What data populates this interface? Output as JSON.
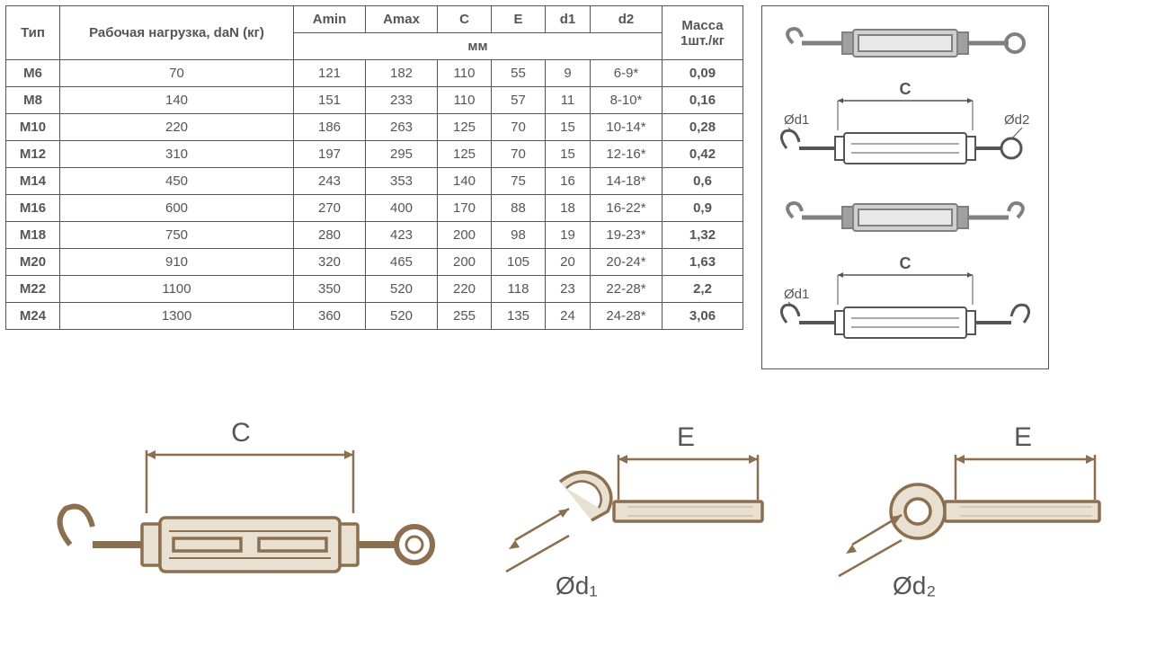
{
  "table": {
    "headers": {
      "type": "Тип",
      "load": "Рабочая нагрузка, daN (кг)",
      "amin": "Amin",
      "amax": "Amax",
      "c": "C",
      "e": "E",
      "d1": "d1",
      "d2": "d2",
      "mm": "мм",
      "mass": "Масса 1шт./кг"
    },
    "rows": [
      {
        "type": "M6",
        "load": "70",
        "amin": "121",
        "amax": "182",
        "c": "110",
        "e": "55",
        "d1": "9",
        "d2": "6-9*",
        "mass": "0,09"
      },
      {
        "type": "M8",
        "load": "140",
        "amin": "151",
        "amax": "233",
        "c": "110",
        "e": "57",
        "d1": "11",
        "d2": "8-10*",
        "mass": "0,16"
      },
      {
        "type": "M10",
        "load": "220",
        "amin": "186",
        "amax": "263",
        "c": "125",
        "e": "70",
        "d1": "15",
        "d2": "10-14*",
        "mass": "0,28"
      },
      {
        "type": "M12",
        "load": "310",
        "amin": "197",
        "amax": "295",
        "c": "125",
        "e": "70",
        "d1": "15",
        "d2": "12-16*",
        "mass": "0,42"
      },
      {
        "type": "M14",
        "load": "450",
        "amin": "243",
        "amax": "353",
        "c": "140",
        "e": "75",
        "d1": "16",
        "d2": "14-18*",
        "mass": "0,6"
      },
      {
        "type": "M16",
        "load": "600",
        "amin": "270",
        "amax": "400",
        "c": "170",
        "e": "88",
        "d1": "18",
        "d2": "16-22*",
        "mass": "0,9"
      },
      {
        "type": "M18",
        "load": "750",
        "amin": "280",
        "amax": "423",
        "c": "200",
        "e": "98",
        "d1": "19",
        "d2": "19-23*",
        "mass": "1,32"
      },
      {
        "type": "M20",
        "load": "910",
        "amin": "320",
        "amax": "465",
        "c": "200",
        "e": "105",
        "d1": "20",
        "d2": "20-24*",
        "mass": "1,63"
      },
      {
        "type": "M22",
        "load": "1100",
        "amin": "350",
        "amax": "520",
        "c": "220",
        "e": "118",
        "d1": "23",
        "d2": "22-28*",
        "mass": "2,2"
      },
      {
        "type": "M24",
        "load": "1300",
        "amin": "360",
        "amax": "520",
        "c": "255",
        "e": "135",
        "d1": "24",
        "d2": "24-28*",
        "mass": "3,06"
      }
    ],
    "colors": {
      "border": "#555555",
      "text": "#555555",
      "bg": "#ffffff"
    }
  },
  "diagrams": {
    "labels": {
      "C": "C",
      "E": "E",
      "d1": "Ød1",
      "d2": "Ød2",
      "diam_d1": "Ød₁",
      "diam_d2": "Ød₂"
    },
    "stroke": "#555555",
    "brown": "#8b6f4e",
    "fill": "#e8e0d0"
  }
}
